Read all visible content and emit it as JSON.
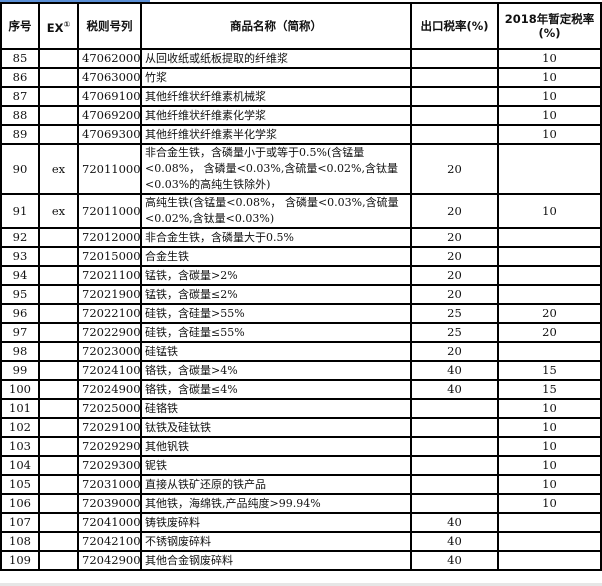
{
  "header": {
    "seq": "序号",
    "ex": "EX",
    "ex_note": "①",
    "code": "税则号列",
    "name": "商品名称（简称）",
    "export_rate": "出口税率(%)",
    "provisional_rate": "2018年暂定税率(%)"
  },
  "rows": [
    {
      "seq": "85",
      "ex": "",
      "code": "47062000",
      "name": "从回收纸或纸板提取的纤维浆",
      "export_rate": "",
      "provisional_rate": "10"
    },
    {
      "seq": "86",
      "ex": "",
      "code": "47063000",
      "name": "竹浆",
      "export_rate": "",
      "provisional_rate": "10"
    },
    {
      "seq": "87",
      "ex": "",
      "code": "47069100",
      "name": "其他纤维状纤维素机械浆",
      "export_rate": "",
      "provisional_rate": "10"
    },
    {
      "seq": "88",
      "ex": "",
      "code": "47069200",
      "name": "其他纤维状纤维素化学浆",
      "export_rate": "",
      "provisional_rate": "10"
    },
    {
      "seq": "89",
      "ex": "",
      "code": "47069300",
      "name": "其他纤维状纤维素半化学浆",
      "export_rate": "",
      "provisional_rate": "10"
    },
    {
      "seq": "90",
      "ex": "ex",
      "code": "72011000",
      "name": "非合金生铁，含磷量小于或等于0.5%(含锰量<0.08%， 含磷量<0.03%,含硫量<0.02%,含钛量<0.03%的高纯生铁除外)",
      "export_rate": "20",
      "provisional_rate": ""
    },
    {
      "seq": "91",
      "ex": "ex",
      "code": "72011000",
      "name": "高纯生铁(含锰量<0.08%， 含磷量<0.03%,含硫量<0.02%,含钛量<0.03%)",
      "export_rate": "20",
      "provisional_rate": "10"
    },
    {
      "seq": "92",
      "ex": "",
      "code": "72012000",
      "name": "非合金生铁，含磷量大于0.5%",
      "export_rate": "20",
      "provisional_rate": ""
    },
    {
      "seq": "93",
      "ex": "",
      "code": "72015000",
      "name": "合金生铁",
      "export_rate": "20",
      "provisional_rate": ""
    },
    {
      "seq": "94",
      "ex": "",
      "code": "72021100",
      "name": "锰铁，含碳量>2%",
      "export_rate": "20",
      "provisional_rate": ""
    },
    {
      "seq": "95",
      "ex": "",
      "code": "72021900",
      "name": "锰铁，含碳量≤2%",
      "export_rate": "20",
      "provisional_rate": ""
    },
    {
      "seq": "96",
      "ex": "",
      "code": "72022100",
      "name": "硅铁，含硅量>55%",
      "export_rate": "25",
      "provisional_rate": "20"
    },
    {
      "seq": "97",
      "ex": "",
      "code": "72022900",
      "name": "硅铁，含硅量≤55%",
      "export_rate": "25",
      "provisional_rate": "20"
    },
    {
      "seq": "98",
      "ex": "",
      "code": "72023000",
      "name": "硅锰铁",
      "export_rate": "20",
      "provisional_rate": ""
    },
    {
      "seq": "99",
      "ex": "",
      "code": "72024100",
      "name": "铬铁，含碳量>4%",
      "export_rate": "40",
      "provisional_rate": "15"
    },
    {
      "seq": "100",
      "ex": "",
      "code": "72024900",
      "name": "铬铁，含碳量≤4%",
      "export_rate": "40",
      "provisional_rate": "15"
    },
    {
      "seq": "101",
      "ex": "",
      "code": "72025000",
      "name": "硅铬铁",
      "export_rate": "",
      "provisional_rate": "10"
    },
    {
      "seq": "102",
      "ex": "",
      "code": "72029100",
      "name": "钛铁及硅钛铁",
      "export_rate": "",
      "provisional_rate": "10"
    },
    {
      "seq": "103",
      "ex": "",
      "code": "72029290",
      "name": "其他钒铁",
      "export_rate": "",
      "provisional_rate": "10"
    },
    {
      "seq": "104",
      "ex": "",
      "code": "72029300",
      "name": "铌铁",
      "export_rate": "",
      "provisional_rate": "10"
    },
    {
      "seq": "105",
      "ex": "",
      "code": "72031000",
      "name": "直接从铁矿还原的铁产品",
      "export_rate": "",
      "provisional_rate": "10"
    },
    {
      "seq": "106",
      "ex": "",
      "code": "72039000",
      "name": "其他铁，海绵铁,产品纯度>99.94%",
      "export_rate": "",
      "provisional_rate": "10"
    },
    {
      "seq": "107",
      "ex": "",
      "code": "72041000",
      "name": "铸铁废碎料",
      "export_rate": "40",
      "provisional_rate": ""
    },
    {
      "seq": "108",
      "ex": "",
      "code": "72042100",
      "name": "不锈钢废碎料",
      "export_rate": "40",
      "provisional_rate": ""
    },
    {
      "seq": "109",
      "ex": "",
      "code": "72042900",
      "name": "其他合金钢废碎料",
      "export_rate": "40",
      "provisional_rate": ""
    }
  ]
}
